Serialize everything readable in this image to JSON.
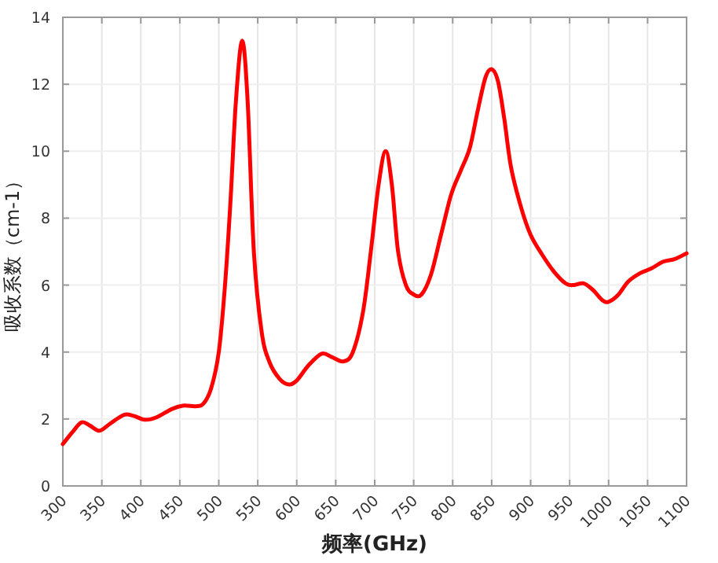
{
  "chart_data": {
    "type": "line",
    "xlabel": "频率(GHz)",
    "ylabel": "吸收系数（cm-1）",
    "x": [
      300,
      312,
      324,
      335,
      347,
      360,
      378,
      390,
      405,
      420,
      440,
      455,
      470,
      480,
      490,
      500,
      508,
      515,
      522,
      530,
      537,
      545,
      555,
      565,
      578,
      590,
      600,
      615,
      632,
      645,
      660,
      672,
      685,
      695,
      705,
      714,
      722,
      730,
      740,
      750,
      760,
      772,
      785,
      798,
      810,
      822,
      832,
      842,
      850,
      858,
      866,
      875,
      888,
      900,
      915,
      930,
      945,
      955,
      968,
      980,
      992,
      1000,
      1012,
      1025,
      1040,
      1055,
      1070,
      1085,
      1100
    ],
    "series": [
      {
        "color": "#ff0000",
        "values": [
          1.25,
          1.6,
          1.9,
          1.8,
          1.65,
          1.85,
          2.12,
          2.1,
          1.98,
          2.05,
          2.3,
          2.4,
          2.38,
          2.45,
          2.9,
          4.0,
          6.0,
          8.5,
          11.5,
          13.3,
          11.5,
          7.0,
          4.6,
          3.7,
          3.2,
          3.03,
          3.15,
          3.6,
          3.95,
          3.85,
          3.72,
          4.0,
          5.2,
          7.0,
          9.0,
          10.0,
          9.0,
          7.0,
          6.0,
          5.72,
          5.72,
          6.3,
          7.5,
          8.7,
          9.4,
          10.1,
          11.2,
          12.2,
          12.45,
          12.1,
          11.0,
          9.5,
          8.3,
          7.5,
          6.9,
          6.4,
          6.05,
          6.0,
          6.05,
          5.85,
          5.55,
          5.5,
          5.7,
          6.1,
          6.35,
          6.5,
          6.7,
          6.78,
          6.95
        ]
      }
    ],
    "xlim": [
      300,
      1100
    ],
    "ylim": [
      0,
      14
    ],
    "xticks": [
      300,
      350,
      400,
      450,
      500,
      550,
      600,
      650,
      700,
      750,
      800,
      850,
      900,
      950,
      1000,
      1050,
      1100
    ],
    "yticks": [
      0,
      2,
      4,
      6,
      8,
      10,
      12,
      14
    ],
    "grid": true
  }
}
